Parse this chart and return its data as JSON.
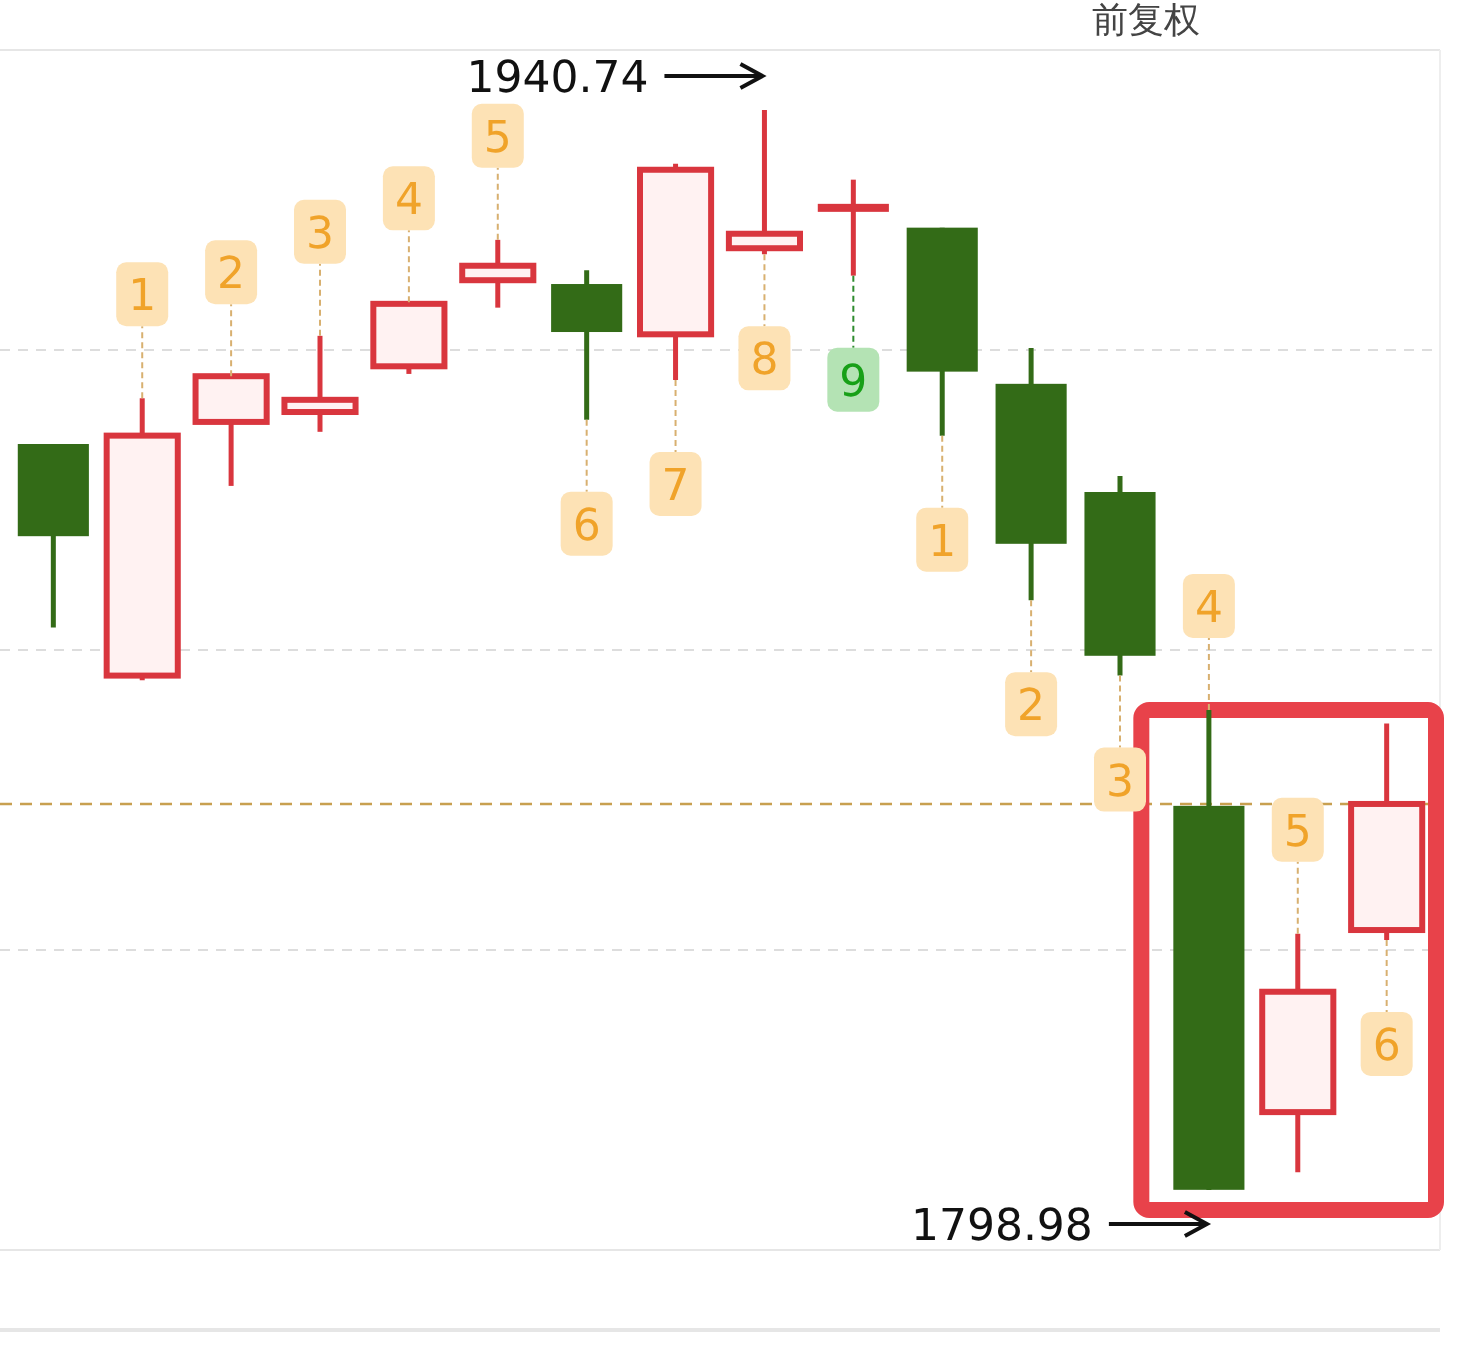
{
  "chart_data": {
    "type": "candlestick",
    "categories": [
      null,
      null,
      null,
      null,
      null,
      null,
      null,
      null,
      null,
      null,
      null,
      null,
      null,
      null,
      null,
      null
    ],
    "ohlc": [
      [
        1896.9,
        1896.9,
        1872.8,
        1884.8
      ],
      [
        1866.5,
        1902.9,
        1865.9,
        1898.0
      ],
      [
        1899.8,
        1905.8,
        1891.4,
        1905.8
      ],
      [
        1901.1,
        1911.1,
        1898.5,
        1902.7
      ],
      [
        1907.1,
        1915.5,
        1906.1,
        1915.3
      ],
      [
        1918.4,
        1923.7,
        1914.8,
        1920.3
      ],
      [
        1917.9,
        1919.7,
        1900.1,
        1911.6
      ],
      [
        1911.3,
        1933.7,
        1905.3,
        1932.9
      ],
      [
        1922.6,
        1940.74,
        1921.8,
        1924.5
      ],
      [
        1927.9,
        1931.6,
        1919.0,
        1927.9
      ],
      [
        1925.3,
        1925.3,
        1898.0,
        1906.4
      ],
      [
        1904.8,
        1909.5,
        1876.4,
        1883.8
      ],
      [
        1890.6,
        1892.7,
        1866.5,
        1869.1
      ],
      [
        1849.4,
        1862.0,
        1798.98,
        1799.0
      ],
      [
        1809.2,
        1832.6,
        1801.3,
        1825.0
      ],
      [
        1833.1,
        1860.2,
        1831.8,
        1849.65
      ]
    ],
    "colors": [
      "#336b17",
      "#d9363e",
      "#d9363e",
      "#d9363e",
      "#d9363e",
      "#d9363e",
      "#336b17",
      "#d9363e",
      "#d9363e",
      "#d9363e",
      "#336b17",
      "#336b17",
      "#336b17",
      "#336b17",
      "#d9363e",
      "#d9363e"
    ],
    "value_labels": [
      null,
      "1",
      "2",
      "3",
      "4",
      "5",
      "6",
      "7",
      "8",
      "9",
      "1",
      "2",
      "3",
      "4",
      "5",
      "6"
    ],
    "ylim": [
      1791.1,
      1948.62
    ],
    "yticks": [
      {
        "value": 1909.24,
        "label": null
      },
      {
        "value": 1869.86,
        "label": null
      },
      {
        "value": 1830.48,
        "label": null
      }
    ],
    "grid": "y",
    "ref_lines": [
      {
        "axis": "y",
        "value": 1849.65,
        "color": "#c8a050",
        "line_style": "dashed"
      }
    ],
    "annotations": [
      "前复权",
      "1940.74",
      "1798.98"
    ]
  }
}
